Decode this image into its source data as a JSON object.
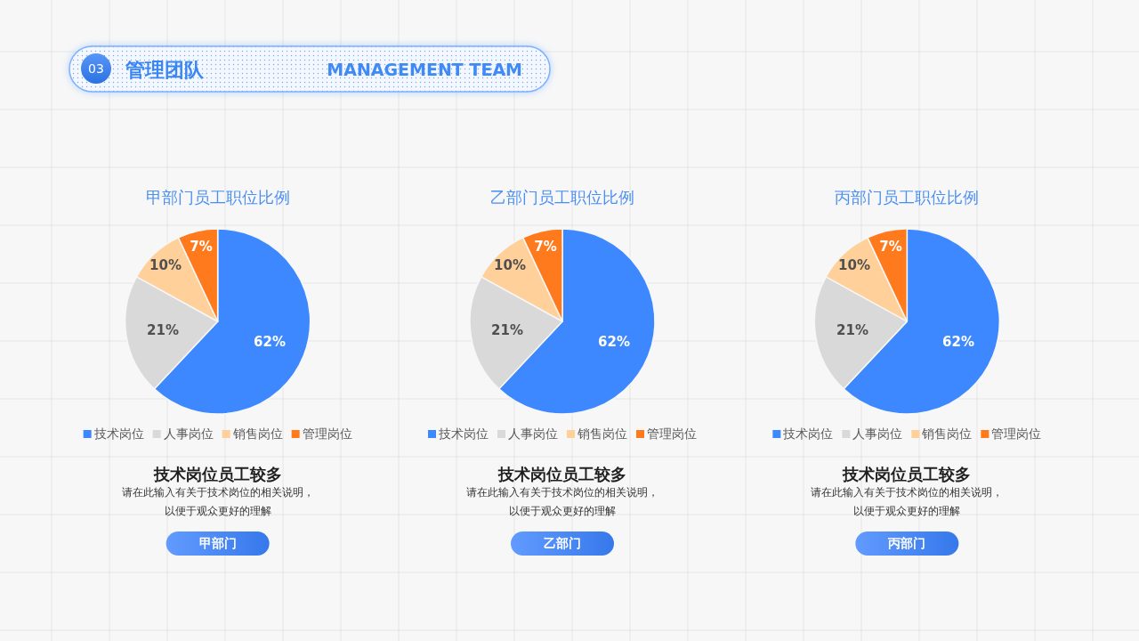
{
  "chart_data": [
    {
      "type": "other",
      "title": "管理团队",
      "subtitle": "MANAGEMENT TEAM",
      "annotations": [
        "03"
      ]
    },
    {
      "type": "pie",
      "title": "甲部门员工职位比例",
      "categories": [
        "技术岗位",
        "人事岗位",
        "销售岗位",
        "管理岗位"
      ],
      "values": [
        62,
        21,
        10,
        7
      ],
      "colors": [
        "#3d88ff",
        "#d9d9d9",
        "#ffd09a",
        "#ff7a1c"
      ],
      "value_labels": [
        "62%",
        "21%",
        "10%",
        "7%"
      ],
      "legend": "bottom",
      "annotations": [
        "技术岗位员工较多",
        "请在此输入有关于技术岗位的相关说明，",
        "以便于观众更好的理解",
        "甲部门"
      ]
    },
    {
      "type": "pie",
      "title": "乙部门员工职位比例",
      "categories": [
        "技术岗位",
        "人事岗位",
        "销售岗位",
        "管理岗位"
      ],
      "values": [
        62,
        21,
        10,
        7
      ],
      "colors": [
        "#3d88ff",
        "#d9d9d9",
        "#ffd09a",
        "#ff7a1c"
      ],
      "value_labels": [
        "62%",
        "21%",
        "10%",
        "7%"
      ],
      "legend": "bottom",
      "annotations": [
        "技术岗位员工较多",
        "请在此输入有关于技术岗位的相关说明，",
        "以便于观众更好的理解",
        "乙部门"
      ]
    },
    {
      "type": "pie",
      "title": "丙部门员工职位比例",
      "categories": [
        "技术岗位",
        "人事岗位",
        "销售岗位",
        "管理岗位"
      ],
      "values": [
        62,
        21,
        10,
        7
      ],
      "colors": [
        "#3d88ff",
        "#d9d9d9",
        "#ffd09a",
        "#ff7a1c"
      ],
      "value_labels": [
        "62%",
        "21%",
        "10%",
        "7%"
      ],
      "legend": "bottom",
      "annotations": [
        "技术岗位员工较多",
        "请在此输入有关于技术岗位的相关说明，",
        "以便于观众更好的理解",
        "丙部门"
      ]
    }
  ]
}
